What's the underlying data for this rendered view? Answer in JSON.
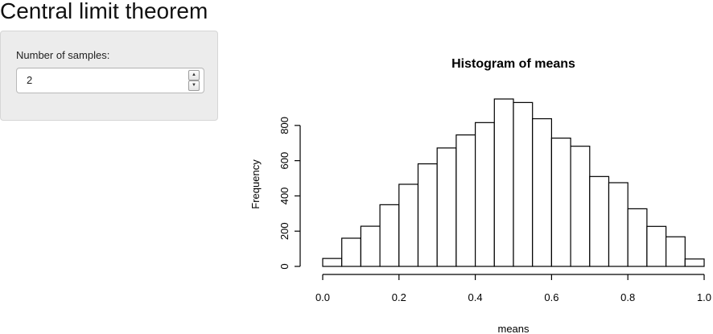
{
  "app": {
    "title": "Central limit theorem"
  },
  "sidebar": {
    "input_label": "Number of samples:",
    "input_value": "2",
    "spin_up_glyph": "▲",
    "spin_down_glyph": "▼"
  },
  "chart_data": {
    "type": "bar",
    "title": "Histogram of means",
    "xlabel": "means",
    "ylabel": "Frequency",
    "bin_edges": [
      0.0,
      0.05,
      0.1,
      0.15,
      0.2,
      0.25,
      0.3,
      0.35,
      0.4,
      0.45,
      0.5,
      0.55,
      0.6,
      0.65,
      0.7,
      0.75,
      0.8,
      0.85,
      0.9,
      0.95,
      1.0
    ],
    "values": [
      45,
      160,
      228,
      350,
      466,
      582,
      672,
      746,
      816,
      950,
      930,
      838,
      728,
      682,
      510,
      475,
      327,
      227,
      168,
      42
    ],
    "xlim": [
      0.0,
      1.0
    ],
    "ylim": [
      0,
      950
    ],
    "x_ticks": [
      0.0,
      0.2,
      0.4,
      0.6,
      0.8,
      1.0
    ],
    "x_tick_labels": [
      "0.0",
      "0.2",
      "0.4",
      "0.6",
      "0.8",
      "1.0"
    ],
    "y_ticks": [
      0,
      200,
      400,
      600,
      800
    ],
    "y_tick_labels": [
      "0",
      "200",
      "400",
      "600",
      "800"
    ],
    "bar_fill": "#ffffff",
    "bar_stroke": "#000000",
    "grid": false
  }
}
